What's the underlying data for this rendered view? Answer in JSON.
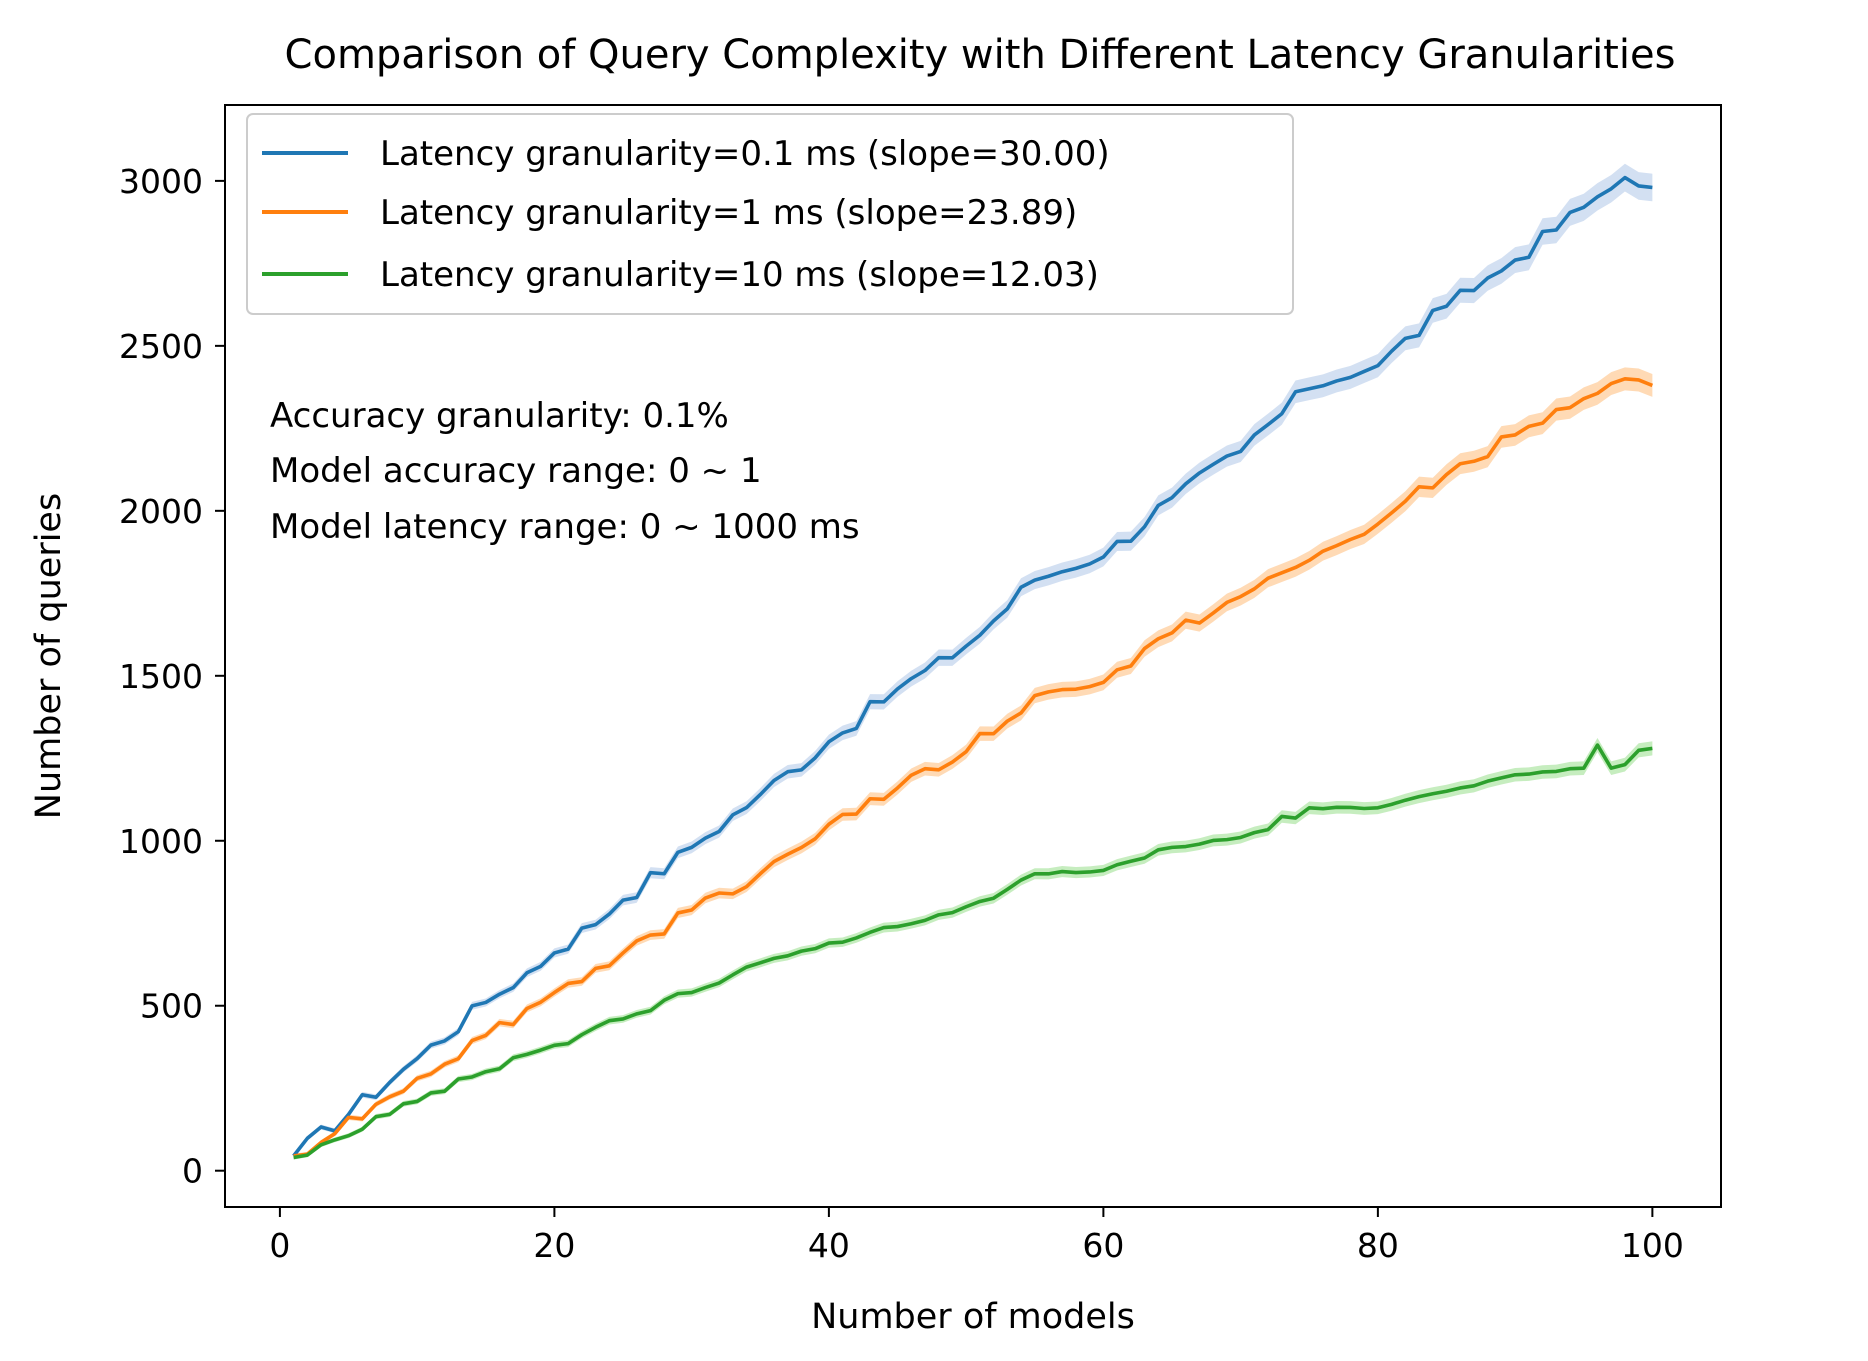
{
  "chart_data": {
    "type": "line",
    "title": "Comparison of Query Complexity with Different Latency Granularities",
    "xlabel": "Number of models",
    "ylabel": "Number of queries",
    "xlim": [
      -4,
      105
    ],
    "ylim": [
      -110,
      3230
    ],
    "xticks": [
      0,
      20,
      40,
      60,
      80,
      100
    ],
    "yticks": [
      0,
      500,
      1000,
      1500,
      2000,
      2500,
      3000
    ],
    "legend_position": "upper-left",
    "annotations": [
      "Accuracy granularity: 0.1%",
      "Model accuracy range: 0 ~ 1",
      "Model latency range: 0 ~ 1000 ms"
    ],
    "series": [
      {
        "name": "Latency granularity=0.1 ms (slope=30.00)",
        "color": "#1f77b4",
        "band_color": "#aec7e8",
        "x": [
          1,
          10,
          15,
          20,
          25,
          30,
          35,
          40,
          45,
          50,
          55,
          60,
          65,
          70,
          75,
          80,
          85,
          90,
          95,
          98,
          100
        ],
        "values": [
          45,
          340,
          510,
          660,
          820,
          980,
          1140,
          1300,
          1460,
          1590,
          1790,
          1860,
          2040,
          2180,
          2370,
          2440,
          2620,
          2760,
          2920,
          3010,
          2980
        ]
      },
      {
        "name": "Latency granularity=1 ms (slope=23.89)",
        "color": "#ff7f0e",
        "band_color": "#ffbb78",
        "x": [
          1,
          10,
          15,
          20,
          25,
          30,
          35,
          40,
          45,
          50,
          55,
          60,
          65,
          70,
          75,
          80,
          85,
          90,
          95,
          98,
          100
        ],
        "values": [
          45,
          280,
          410,
          540,
          660,
          790,
          900,
          1050,
          1160,
          1270,
          1440,
          1480,
          1630,
          1740,
          1850,
          1960,
          2110,
          2230,
          2340,
          2400,
          2380
        ]
      },
      {
        "name": "Latency granularity=10 ms (slope=12.03)",
        "color": "#2ca02c",
        "band_color": "#98df8a",
        "x": [
          1,
          10,
          15,
          20,
          25,
          30,
          35,
          40,
          45,
          50,
          55,
          60,
          65,
          70,
          75,
          80,
          85,
          90,
          95,
          96,
          97,
          100
        ],
        "values": [
          40,
          210,
          300,
          380,
          460,
          540,
          630,
          690,
          740,
          800,
          900,
          910,
          980,
          1010,
          1100,
          1100,
          1150,
          1200,
          1220,
          1290,
          1220,
          1280
        ]
      }
    ]
  }
}
